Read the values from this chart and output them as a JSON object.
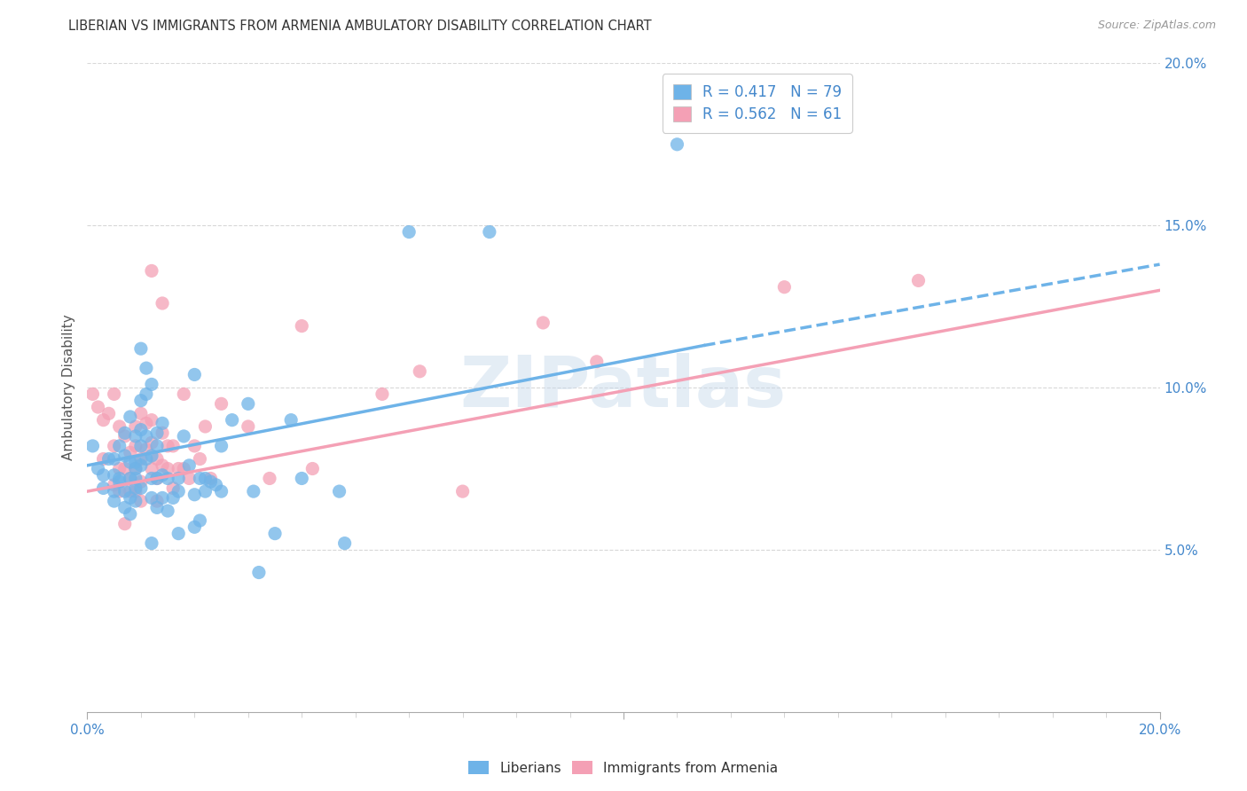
{
  "title": "LIBERIAN VS IMMIGRANTS FROM ARMENIA AMBULATORY DISABILITY CORRELATION CHART",
  "source": "Source: ZipAtlas.com",
  "ylabel": "Ambulatory Disability",
  "xlim": [
    0.0,
    0.2
  ],
  "ylim": [
    0.0,
    0.2
  ],
  "xtick_major": [
    0.0,
    0.1,
    0.2
  ],
  "xtick_minor_step": 0.01,
  "yticks": [
    0.05,
    0.1,
    0.15,
    0.2
  ],
  "xticklabels_major": {
    "0.0": "0.0%",
    "0.1": "",
    "0.2": "20.0%"
  },
  "yticklabels": [
    "5.0%",
    "10.0%",
    "15.0%",
    "20.0%"
  ],
  "liberian_color": "#6eb3e8",
  "armenia_color": "#f4a0b5",
  "liberian_R": 0.417,
  "liberian_N": 79,
  "armenia_R": 0.562,
  "armenia_N": 61,
  "liberian_scatter": [
    [
      0.001,
      0.082
    ],
    [
      0.002,
      0.075
    ],
    [
      0.003,
      0.073
    ],
    [
      0.003,
      0.069
    ],
    [
      0.004,
      0.078
    ],
    [
      0.005,
      0.078
    ],
    [
      0.005,
      0.068
    ],
    [
      0.005,
      0.073
    ],
    [
      0.005,
      0.065
    ],
    [
      0.006,
      0.082
    ],
    [
      0.006,
      0.071
    ],
    [
      0.006,
      0.072
    ],
    [
      0.007,
      0.086
    ],
    [
      0.007,
      0.079
    ],
    [
      0.007,
      0.068
    ],
    [
      0.007,
      0.063
    ],
    [
      0.008,
      0.091
    ],
    [
      0.008,
      0.077
    ],
    [
      0.008,
      0.072
    ],
    [
      0.008,
      0.066
    ],
    [
      0.008,
      0.061
    ],
    [
      0.009,
      0.085
    ],
    [
      0.009,
      0.077
    ],
    [
      0.009,
      0.075
    ],
    [
      0.009,
      0.072
    ],
    [
      0.009,
      0.069
    ],
    [
      0.009,
      0.065
    ],
    [
      0.01,
      0.112
    ],
    [
      0.01,
      0.096
    ],
    [
      0.01,
      0.087
    ],
    [
      0.01,
      0.082
    ],
    [
      0.01,
      0.076
    ],
    [
      0.01,
      0.069
    ],
    [
      0.011,
      0.106
    ],
    [
      0.011,
      0.098
    ],
    [
      0.011,
      0.085
    ],
    [
      0.011,
      0.078
    ],
    [
      0.012,
      0.101
    ],
    [
      0.012,
      0.079
    ],
    [
      0.012,
      0.072
    ],
    [
      0.012,
      0.066
    ],
    [
      0.012,
      0.052
    ],
    [
      0.013,
      0.086
    ],
    [
      0.013,
      0.082
    ],
    [
      0.013,
      0.072
    ],
    [
      0.013,
      0.063
    ],
    [
      0.014,
      0.089
    ],
    [
      0.014,
      0.073
    ],
    [
      0.014,
      0.066
    ],
    [
      0.015,
      0.072
    ],
    [
      0.015,
      0.062
    ],
    [
      0.016,
      0.066
    ],
    [
      0.017,
      0.068
    ],
    [
      0.017,
      0.072
    ],
    [
      0.017,
      0.055
    ],
    [
      0.018,
      0.085
    ],
    [
      0.019,
      0.076
    ],
    [
      0.02,
      0.104
    ],
    [
      0.02,
      0.067
    ],
    [
      0.02,
      0.057
    ],
    [
      0.021,
      0.072
    ],
    [
      0.021,
      0.059
    ],
    [
      0.022,
      0.072
    ],
    [
      0.022,
      0.068
    ],
    [
      0.023,
      0.071
    ],
    [
      0.024,
      0.07
    ],
    [
      0.025,
      0.082
    ],
    [
      0.025,
      0.068
    ],
    [
      0.027,
      0.09
    ],
    [
      0.03,
      0.095
    ],
    [
      0.031,
      0.068
    ],
    [
      0.032,
      0.043
    ],
    [
      0.035,
      0.055
    ],
    [
      0.038,
      0.09
    ],
    [
      0.04,
      0.072
    ],
    [
      0.047,
      0.068
    ],
    [
      0.048,
      0.052
    ],
    [
      0.06,
      0.148
    ],
    [
      0.075,
      0.148
    ],
    [
      0.11,
      0.175
    ]
  ],
  "armenia_scatter": [
    [
      0.001,
      0.098
    ],
    [
      0.002,
      0.094
    ],
    [
      0.003,
      0.09
    ],
    [
      0.003,
      0.078
    ],
    [
      0.004,
      0.092
    ],
    [
      0.005,
      0.098
    ],
    [
      0.005,
      0.082
    ],
    [
      0.005,
      0.07
    ],
    [
      0.006,
      0.088
    ],
    [
      0.006,
      0.075
    ],
    [
      0.006,
      0.068
    ],
    [
      0.007,
      0.085
    ],
    [
      0.007,
      0.075
    ],
    [
      0.007,
      0.058
    ],
    [
      0.008,
      0.08
    ],
    [
      0.008,
      0.072
    ],
    [
      0.008,
      0.068
    ],
    [
      0.009,
      0.088
    ],
    [
      0.009,
      0.082
    ],
    [
      0.009,
      0.075
    ],
    [
      0.009,
      0.068
    ],
    [
      0.01,
      0.092
    ],
    [
      0.01,
      0.078
    ],
    [
      0.01,
      0.071
    ],
    [
      0.01,
      0.065
    ],
    [
      0.011,
      0.089
    ],
    [
      0.011,
      0.081
    ],
    [
      0.012,
      0.136
    ],
    [
      0.012,
      0.09
    ],
    [
      0.012,
      0.083
    ],
    [
      0.012,
      0.075
    ],
    [
      0.013,
      0.078
    ],
    [
      0.013,
      0.072
    ],
    [
      0.013,
      0.065
    ],
    [
      0.014,
      0.126
    ],
    [
      0.014,
      0.086
    ],
    [
      0.014,
      0.076
    ],
    [
      0.015,
      0.082
    ],
    [
      0.015,
      0.075
    ],
    [
      0.016,
      0.082
    ],
    [
      0.016,
      0.069
    ],
    [
      0.017,
      0.075
    ],
    [
      0.018,
      0.098
    ],
    [
      0.018,
      0.075
    ],
    [
      0.019,
      0.072
    ],
    [
      0.02,
      0.082
    ],
    [
      0.021,
      0.078
    ],
    [
      0.022,
      0.088
    ],
    [
      0.023,
      0.072
    ],
    [
      0.025,
      0.095
    ],
    [
      0.03,
      0.088
    ],
    [
      0.034,
      0.072
    ],
    [
      0.04,
      0.119
    ],
    [
      0.042,
      0.075
    ],
    [
      0.055,
      0.098
    ],
    [
      0.062,
      0.105
    ],
    [
      0.07,
      0.068
    ],
    [
      0.085,
      0.12
    ],
    [
      0.095,
      0.108
    ],
    [
      0.13,
      0.131
    ],
    [
      0.155,
      0.133
    ]
  ],
  "liberian_line_solid": [
    [
      0.0,
      0.076
    ],
    [
      0.115,
      0.113
    ]
  ],
  "liberian_line_dash": [
    [
      0.115,
      0.113
    ],
    [
      0.2,
      0.138
    ]
  ],
  "armenia_line": [
    [
      0.0,
      0.068
    ],
    [
      0.2,
      0.13
    ]
  ],
  "background_color": "#ffffff",
  "grid_color": "#d8d8d8",
  "watermark_text": "ZIPatlas",
  "tick_color": "#4488cc",
  "title_color": "#333333",
  "source_color": "#999999",
  "ylabel_color": "#555555"
}
